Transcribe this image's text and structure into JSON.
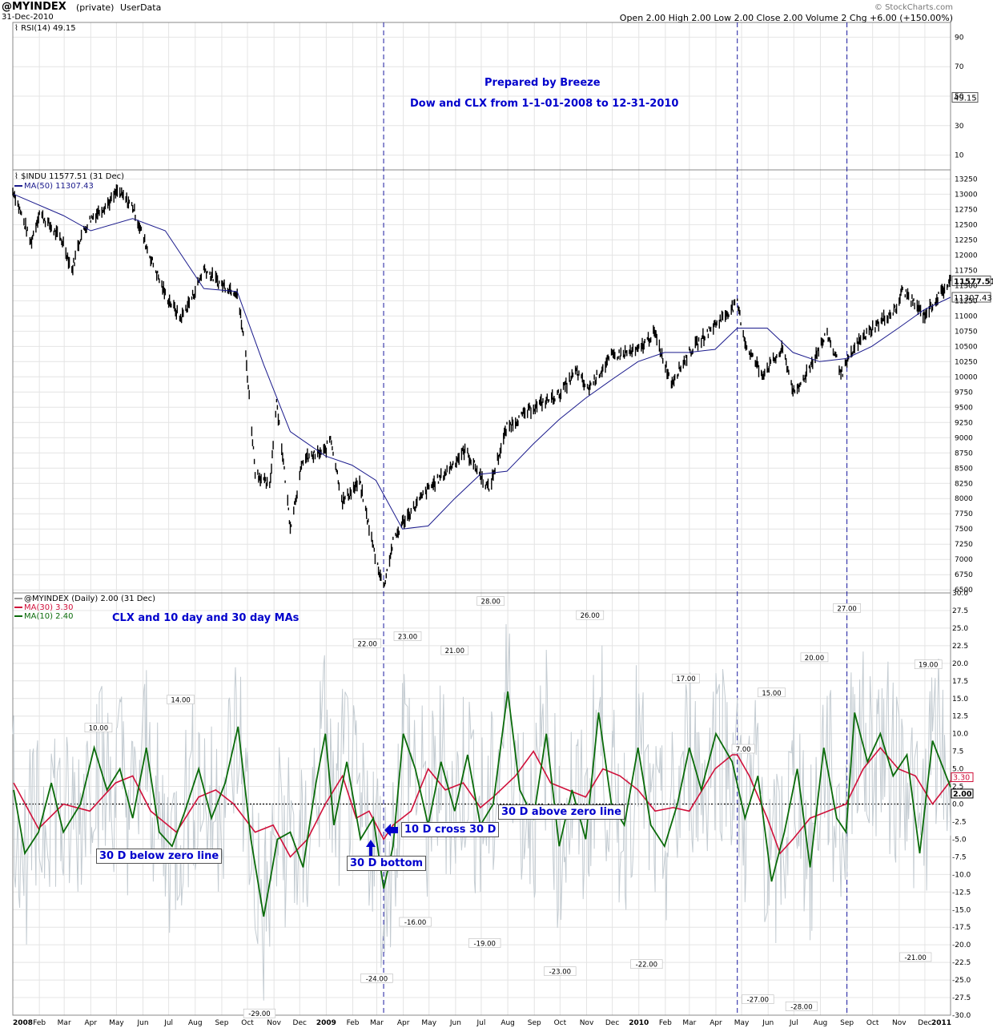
{
  "header": {
    "symbol": "@MYINDEX",
    "privacy": "(private)",
    "source": "UserData",
    "date": "31-Dec-2010",
    "quote": "Open 2.00  High 2.00  Low 2.00  Close 2.00  Volume 2  Chg +6.00 (+150.00%)",
    "watermark": "© StockCharts.com"
  },
  "rsi_panel": {
    "legend": "RSI(14) 49.15",
    "last_value": "49.15",
    "ticks": [
      "90",
      "70",
      "50",
      "30",
      "10"
    ]
  },
  "price_panel": {
    "legend": "$INDU 11577.51 (31 Dec)",
    "ma_legend": "MA(50) 11307.43",
    "last_price": "11577.51",
    "last_ma": "11307.43",
    "ticks": [
      "13250",
      "13000",
      "12750",
      "12500",
      "12250",
      "12000",
      "11750",
      "11500",
      "11250",
      "11000",
      "10750",
      "10500",
      "10250",
      "10000",
      "9750",
      "9500",
      "9250",
      "9000",
      "8750",
      "8500",
      "8250",
      "8000",
      "7750",
      "7500",
      "7250",
      "7000",
      "6750",
      "6500"
    ]
  },
  "clx_panel": {
    "legend": "@MYINDEX (Daily) 2.00 (31 Dec)",
    "ma30_legend": "MA(30) 3.30",
    "ma10_legend": "MA(10) 2.40",
    "last_ma30": "3.30",
    "last_value": "2.00",
    "ticks": [
      "30.0",
      "27.5",
      "25.0",
      "22.5",
      "20.0",
      "17.5",
      "15.0",
      "12.5",
      "10.0",
      "7.5",
      "5.0",
      "2.5",
      "0.0",
      "-2.5",
      "-5.0",
      "-7.5",
      "-10.0",
      "-12.5",
      "-15.0",
      "-17.5",
      "-20.0",
      "-22.5",
      "-25.0",
      "-27.5",
      "-30.0"
    ]
  },
  "annotations": {
    "prepared_by": "Prepared by Breeze",
    "subtitle": "Dow and CLX from 1-1-01-2008 to 12-31-2010",
    "panel_note": "CLX and 10 day and 30 day MAs",
    "below_zero": "30 D below zero line",
    "bottom": "30 D bottom",
    "cross": "10 D cross 30 D",
    "above_zero": "30 D above zero line"
  },
  "colors": {
    "price": "#000000",
    "ma50": "#1a1a8c",
    "clx_raw": "#c4ccd2",
    "ma30": "#d0103a",
    "ma10": "#0a6b0a",
    "annotation": "#0000cc",
    "vline": "#1a1aa0"
  },
  "chart_data": {
    "type": "line",
    "x_axis": {
      "labels": [
        "2008",
        "Feb",
        "Mar",
        "Apr",
        "May",
        "Jun",
        "Jul",
        "Aug",
        "Sep",
        "Oct",
        "Nov",
        "Dec",
        "2009",
        "Feb",
        "Mar",
        "Apr",
        "May",
        "Jun",
        "Jul",
        "Aug",
        "Sep",
        "Oct",
        "Nov",
        "Dec",
        "2010",
        "Feb",
        "Mar",
        "Apr",
        "May",
        "Jun",
        "Jul",
        "Aug",
        "Sep",
        "Oct",
        "Nov",
        "Dec",
        "2011"
      ],
      "start": "2008-01-01",
      "end": "2010-12-31"
    },
    "vertical_markers": [
      "2009-03-09",
      "2010-04-26",
      "2010-09-01"
    ],
    "dow_close": {
      "ylim": [
        6450,
        13400
      ],
      "points": [
        [
          "2008-01-02",
          13044
        ],
        [
          "2008-01-22",
          12200
        ],
        [
          "2008-02-01",
          12700
        ],
        [
          "2008-02-29",
          12200
        ],
        [
          "2008-03-10",
          11750
        ],
        [
          "2008-03-20",
          12300
        ],
        [
          "2008-04-01",
          12600
        ],
        [
          "2008-04-25",
          12900
        ],
        [
          "2008-05-02",
          13050
        ],
        [
          "2008-05-20",
          12800
        ],
        [
          "2008-06-06",
          12100
        ],
        [
          "2008-06-27",
          11350
        ],
        [
          "2008-07-15",
          10960
        ],
        [
          "2008-07-31",
          11380
        ],
        [
          "2008-08-11",
          11780
        ],
        [
          "2008-08-29",
          11540
        ],
        [
          "2008-09-19",
          11390
        ],
        [
          "2008-09-29",
          10365
        ],
        [
          "2008-10-10",
          8450
        ],
        [
          "2008-10-27",
          8175
        ],
        [
          "2008-11-04",
          9625
        ],
        [
          "2008-11-20",
          7550
        ],
        [
          "2008-12-05",
          8640
        ],
        [
          "2008-12-31",
          8780
        ],
        [
          "2009-01-06",
          9015
        ],
        [
          "2009-01-20",
          7950
        ],
        [
          "2009-02-09",
          8270
        ],
        [
          "2009-02-27",
          7060
        ],
        [
          "2009-03-09",
          6547
        ],
        [
          "2009-03-20",
          7280
        ],
        [
          "2009-03-31",
          7600
        ],
        [
          "2009-04-30",
          8160
        ],
        [
          "2009-05-20",
          8420
        ],
        [
          "2009-06-12",
          8800
        ],
        [
          "2009-07-10",
          8150
        ],
        [
          "2009-07-31",
          9170
        ],
        [
          "2009-08-31",
          9500
        ],
        [
          "2009-09-30",
          9710
        ],
        [
          "2009-10-20",
          10090
        ],
        [
          "2009-11-02",
          9790
        ],
        [
          "2009-11-30",
          10340
        ],
        [
          "2009-12-31",
          10430
        ],
        [
          "2010-01-19",
          10725
        ],
        [
          "2010-02-08",
          9910
        ],
        [
          "2010-03-01",
          10400
        ],
        [
          "2010-03-31",
          10860
        ],
        [
          "2010-04-26",
          11205
        ],
        [
          "2010-05-06",
          10520
        ],
        [
          "2010-05-25",
          10040
        ],
        [
          "2010-06-18",
          10450
        ],
        [
          "2010-07-02",
          9690
        ],
        [
          "2010-07-30",
          10460
        ],
        [
          "2010-08-09",
          10700
        ],
        [
          "2010-08-26",
          10060
        ],
        [
          "2010-09-13",
          10540
        ],
        [
          "2010-09-30",
          10790
        ],
        [
          "2010-10-29",
          11120
        ],
        [
          "2010-11-05",
          11440
        ],
        [
          "2010-11-30",
          11005
        ],
        [
          "2010-12-31",
          11577
        ]
      ]
    },
    "dow_ma50": {
      "points": [
        [
          "2008-01-02",
          13000
        ],
        [
          "2008-02-29",
          12650
        ],
        [
          "2008-04-01",
          12400
        ],
        [
          "2008-05-20",
          12600
        ],
        [
          "2008-06-27",
          12400
        ],
        [
          "2008-08-11",
          11450
        ],
        [
          "2008-09-19",
          11400
        ],
        [
          "2008-10-20",
          10200
        ],
        [
          "2008-11-20",
          9100
        ],
        [
          "2008-12-31",
          8700
        ],
        [
          "2009-01-31",
          8550
        ],
        [
          "2009-02-28",
          8300
        ],
        [
          "2009-03-31",
          7500
        ],
        [
          "2009-04-30",
          7550
        ],
        [
          "2009-05-31",
          8000
        ],
        [
          "2009-06-30",
          8400
        ],
        [
          "2009-07-31",
          8450
        ],
        [
          "2009-08-31",
          8900
        ],
        [
          "2009-09-30",
          9300
        ],
        [
          "2009-10-31",
          9650
        ],
        [
          "2009-11-30",
          9950
        ],
        [
          "2009-12-31",
          10250
        ],
        [
          "2010-01-31",
          10400
        ],
        [
          "2010-02-28",
          10400
        ],
        [
          "2010-03-31",
          10450
        ],
        [
          "2010-04-26",
          10800
        ],
        [
          "2010-05-31",
          10800
        ],
        [
          "2010-06-30",
          10400
        ],
        [
          "2010-07-31",
          10250
        ],
        [
          "2010-08-31",
          10300
        ],
        [
          "2010-09-30",
          10500
        ],
        [
          "2010-10-31",
          10800
        ],
        [
          "2010-11-30",
          11100
        ],
        [
          "2010-12-31",
          11307
        ]
      ]
    },
    "rsi14": {
      "ylim": [
        0,
        100
      ],
      "last": 49.15
    },
    "clx_ma30": {
      "ylim": [
        -30,
        30
      ],
      "points": [
        [
          "2008-01-02",
          3
        ],
        [
          "2008-01-31",
          -3.5
        ],
        [
          "2008-02-29",
          0
        ],
        [
          "2008-03-31",
          -1
        ],
        [
          "2008-04-30",
          3
        ],
        [
          "2008-05-20",
          4
        ],
        [
          "2008-06-10",
          -1
        ],
        [
          "2008-07-10",
          -4
        ],
        [
          "2008-08-05",
          1
        ],
        [
          "2008-08-25",
          2
        ],
        [
          "2008-09-15",
          0
        ],
        [
          "2008-10-10",
          -4
        ],
        [
          "2008-10-31",
          -3
        ],
        [
          "2008-11-20",
          -7.5
        ],
        [
          "2008-12-10",
          -5
        ],
        [
          "2008-12-31",
          0
        ],
        [
          "2009-01-20",
          4
        ],
        [
          "2009-02-05",
          -2
        ],
        [
          "2009-02-20",
          -1
        ],
        [
          "2009-03-09",
          -5
        ],
        [
          "2009-03-20",
          -3
        ],
        [
          "2009-04-10",
          -1
        ],
        [
          "2009-04-30",
          5
        ],
        [
          "2009-05-20",
          2
        ],
        [
          "2009-06-10",
          3
        ],
        [
          "2009-06-30",
          -0.5
        ],
        [
          "2009-07-15",
          1
        ],
        [
          "2009-08-10",
          4
        ],
        [
          "2009-08-31",
          7.5
        ],
        [
          "2009-09-20",
          3
        ],
        [
          "2009-10-10",
          2
        ],
        [
          "2009-10-31",
          1
        ],
        [
          "2009-11-20",
          5
        ],
        [
          "2009-12-10",
          4
        ],
        [
          "2009-12-31",
          2
        ],
        [
          "2010-01-20",
          -1
        ],
        [
          "2010-02-10",
          -0.5
        ],
        [
          "2010-03-01",
          -1
        ],
        [
          "2010-03-31",
          5
        ],
        [
          "2010-04-20",
          7
        ],
        [
          "2010-04-26",
          7
        ],
        [
          "2010-05-10",
          4
        ],
        [
          "2010-05-31",
          -2
        ],
        [
          "2010-06-15",
          -7
        ],
        [
          "2010-06-30",
          -5
        ],
        [
          "2010-07-20",
          -2
        ],
        [
          "2010-08-10",
          -1
        ],
        [
          "2010-08-31",
          0
        ],
        [
          "2010-09-20",
          5
        ],
        [
          "2010-10-10",
          8
        ],
        [
          "2010-10-31",
          5
        ],
        [
          "2010-11-20",
          4
        ],
        [
          "2010-12-10",
          0
        ],
        [
          "2010-12-31",
          3.3
        ]
      ]
    },
    "clx_ma10": {
      "points": [
        [
          "2008-01-02",
          2
        ],
        [
          "2008-01-15",
          -7
        ],
        [
          "2008-01-31",
          -4
        ],
        [
          "2008-02-15",
          3
        ],
        [
          "2008-02-29",
          -4
        ],
        [
          "2008-03-20",
          0
        ],
        [
          "2008-04-05",
          8
        ],
        [
          "2008-04-20",
          2
        ],
        [
          "2008-05-05",
          5
        ],
        [
          "2008-05-20",
          -2
        ],
        [
          "2008-06-05",
          8
        ],
        [
          "2008-06-20",
          -4
        ],
        [
          "2008-07-05",
          -6
        ],
        [
          "2008-07-20",
          -1
        ],
        [
          "2008-08-05",
          5
        ],
        [
          "2008-08-20",
          -2
        ],
        [
          "2008-09-05",
          3
        ],
        [
          "2008-09-20",
          11
        ],
        [
          "2008-10-05",
          -5
        ],
        [
          "2008-10-20",
          -16
        ],
        [
          "2008-11-05",
          -5
        ],
        [
          "2008-11-20",
          -4
        ],
        [
          "2008-12-05",
          -9
        ],
        [
          "2008-12-20",
          3
        ],
        [
          "2008-12-31",
          10
        ],
        [
          "2009-01-10",
          -3
        ],
        [
          "2009-01-25",
          6
        ],
        [
          "2009-02-10",
          -5
        ],
        [
          "2009-02-25",
          -2
        ],
        [
          "2009-03-09",
          -12
        ],
        [
          "2009-03-20",
          -6
        ],
        [
          "2009-04-01",
          10
        ],
        [
          "2009-04-15",
          5
        ],
        [
          "2009-04-30",
          -3
        ],
        [
          "2009-05-15",
          6
        ],
        [
          "2009-05-31",
          -1
        ],
        [
          "2009-06-15",
          7
        ],
        [
          "2009-06-30",
          -3
        ],
        [
          "2009-07-15",
          0
        ],
        [
          "2009-08-01",
          16
        ],
        [
          "2009-08-15",
          2
        ],
        [
          "2009-08-31",
          -2
        ],
        [
          "2009-09-15",
          10
        ],
        [
          "2009-09-30",
          -6
        ],
        [
          "2009-10-15",
          2
        ],
        [
          "2009-10-31",
          -5
        ],
        [
          "2009-11-15",
          13
        ],
        [
          "2009-11-30",
          0
        ],
        [
          "2009-12-15",
          -3
        ],
        [
          "2009-12-31",
          8
        ],
        [
          "2010-01-15",
          -3
        ],
        [
          "2010-01-31",
          -6
        ],
        [
          "2010-02-15",
          0
        ],
        [
          "2010-03-01",
          8
        ],
        [
          "2010-03-15",
          2
        ],
        [
          "2010-04-01",
          10
        ],
        [
          "2010-04-20",
          6
        ],
        [
          "2010-05-05",
          -2
        ],
        [
          "2010-05-20",
          4
        ],
        [
          "2010-06-05",
          -11
        ],
        [
          "2010-06-20",
          -4
        ],
        [
          "2010-07-05",
          5
        ],
        [
          "2010-07-20",
          -9
        ],
        [
          "2010-08-05",
          8
        ],
        [
          "2010-08-20",
          -2
        ],
        [
          "2010-08-31",
          -4
        ],
        [
          "2010-09-10",
          13
        ],
        [
          "2010-09-25",
          6
        ],
        [
          "2010-10-10",
          10
        ],
        [
          "2010-10-25",
          4
        ],
        [
          "2010-11-10",
          7
        ],
        [
          "2010-11-25",
          -7
        ],
        [
          "2010-12-10",
          9
        ],
        [
          "2010-12-31",
          2.4
        ]
      ]
    },
    "peak_labels": [
      {
        "date": "2008-04-10",
        "value": 10.0
      },
      {
        "date": "2008-07-15",
        "value": 14.0
      },
      {
        "date": "2008-10-15",
        "value": -29.0
      },
      {
        "date": "2009-02-18",
        "value": 22.0
      },
      {
        "date": "2009-03-01",
        "value": -24.0
      },
      {
        "date": "2009-04-06",
        "value": 23.0
      },
      {
        "date": "2009-04-15",
        "value": -16.0
      },
      {
        "date": "2009-05-31",
        "value": 21.0
      },
      {
        "date": "2009-07-05",
        "value": -19.0
      },
      {
        "date": "2009-07-12",
        "value": 28.0
      },
      {
        "date": "2009-10-01",
        "value": -23.0
      },
      {
        "date": "2009-11-05",
        "value": 26.0
      },
      {
        "date": "2010-01-10",
        "value": -22.0
      },
      {
        "date": "2010-02-25",
        "value": 17.0
      },
      {
        "date": "2010-05-03",
        "value": 7.0
      },
      {
        "date": "2010-05-20",
        "value": -27.0
      },
      {
        "date": "2010-06-05",
        "value": 15.0
      },
      {
        "date": "2010-07-10",
        "value": -28.0
      },
      {
        "date": "2010-07-25",
        "value": 20.0
      },
      {
        "date": "2010-09-01",
        "value": 27.0
      },
      {
        "date": "2010-11-20",
        "value": -21.0
      },
      {
        "date": "2010-12-05",
        "value": 19.0
      }
    ]
  }
}
